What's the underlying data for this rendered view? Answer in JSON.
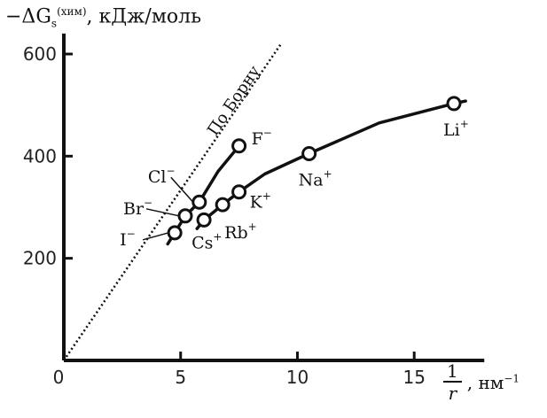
{
  "chart_data": {
    "type": "line",
    "ylabel": {
      "prefix": "−ΔG",
      "sub": "s",
      "sup": "(хим)",
      "unit": ", кДж/моль"
    },
    "xlabel": {
      "numerator": "1",
      "denominator": "r",
      "unit": ", нм",
      "unit_exp": "−1"
    },
    "xlim": [
      0,
      18
    ],
    "ylim": [
      0,
      640
    ],
    "xticks": [
      0,
      5,
      10,
      15
    ],
    "xtick_labels": [
      "0",
      "5",
      "10",
      "15"
    ],
    "yticks": [
      200,
      400,
      600
    ],
    "ytick_labels": [
      "200",
      "400",
      "600"
    ],
    "born_line": {
      "label": "По Борну",
      "points": [
        [
          0,
          0
        ],
        [
          9.3,
          620
        ]
      ]
    },
    "series": [
      {
        "group": "anions",
        "line": [
          [
            4.45,
            228
          ],
          [
            4.75,
            250
          ],
          [
            5.2,
            283
          ],
          [
            5.8,
            310
          ],
          [
            6.6,
            370
          ],
          [
            7.5,
            420
          ]
        ],
        "points": [
          {
            "ion": "I",
            "charge": "−",
            "x": 4.75,
            "y": 250
          },
          {
            "ion": "Br",
            "charge": "−",
            "x": 5.2,
            "y": 283
          },
          {
            "ion": "Cl",
            "charge": "−",
            "x": 5.8,
            "y": 310
          },
          {
            "ion": "F",
            "charge": "−",
            "x": 7.5,
            "y": 420
          }
        ]
      },
      {
        "group": "cations",
        "line": [
          [
            5.7,
            258
          ],
          [
            6.0,
            275
          ],
          [
            6.8,
            305
          ],
          [
            7.5,
            330
          ],
          [
            8.6,
            365
          ],
          [
            10.5,
            405
          ],
          [
            13.5,
            465
          ],
          [
            16.7,
            503
          ],
          [
            17.2,
            508
          ]
        ],
        "points": [
          {
            "ion": "Cs",
            "charge": "+",
            "x": 6.0,
            "y": 275
          },
          {
            "ion": "Rb",
            "charge": "+",
            "x": 6.8,
            "y": 305
          },
          {
            "ion": "K",
            "charge": "+",
            "x": 7.5,
            "y": 330
          },
          {
            "ion": "Na",
            "charge": "+",
            "x": 10.5,
            "y": 405
          },
          {
            "ion": "Li",
            "charge": "+",
            "x": 16.7,
            "y": 503
          }
        ]
      }
    ]
  }
}
